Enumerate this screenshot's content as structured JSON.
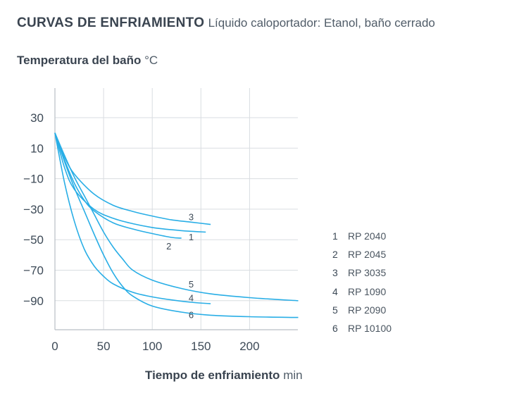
{
  "title": "CURVAS DE ENFRIAMIENTO",
  "subtitle": "Líquido caloportador: Etanol, baño cerrado",
  "ylabel": {
    "text": "Temperatura del baño",
    "unit": "°C"
  },
  "xlabel": {
    "text": "Tiempo de enfriamiento",
    "unit": "min"
  },
  "legend": [
    {
      "num": "1",
      "label": "RP 2040"
    },
    {
      "num": "2",
      "label": "RP 2045"
    },
    {
      "num": "3",
      "label": "RP 3035"
    },
    {
      "num": "4",
      "label": "RP 1090"
    },
    {
      "num": "5",
      "label": "RP 2090"
    },
    {
      "num": "6",
      "label": "RP 10100"
    }
  ],
  "chart_data": {
    "type": "line",
    "title": "CURVAS DE ENFRIAMIENTO",
    "subtitle": "Líquido caloportador: Etanol, baño cerrado",
    "xlabel": "Tiempo de enfriamiento min",
    "ylabel": "Temperatura del baño °C",
    "xlim": [
      0,
      250
    ],
    "ylim": [
      -110,
      50
    ],
    "xticks": [
      0,
      50,
      100,
      150,
      200
    ],
    "yticks": [
      30,
      10,
      -10,
      -30,
      -50,
      -70,
      -90
    ],
    "grid": true,
    "line_color": "#29aee6",
    "series": [
      {
        "name": "1",
        "x": [
          0,
          10,
          20,
          40,
          60,
          80,
          100,
          120,
          140,
          155
        ],
        "y": [
          20,
          -3,
          -17,
          -30,
          -36,
          -39.5,
          -42,
          -43.5,
          -44.5,
          -45
        ]
      },
      {
        "name": "2",
        "x": [
          0,
          10,
          20,
          30,
          40,
          60,
          80,
          100,
          120,
          130
        ],
        "y": [
          20,
          2,
          -13,
          -24,
          -31,
          -39,
          -43,
          -46,
          -48.5,
          -49
        ]
      },
      {
        "name": "3",
        "x": [
          0,
          10,
          20,
          40,
          60,
          80,
          100,
          120,
          140,
          160
        ],
        "y": [
          20,
          4,
          -7,
          -20,
          -27.5,
          -31.5,
          -34.5,
          -37,
          -38.5,
          -40
        ]
      },
      {
        "name": "4",
        "x": [
          0,
          10,
          20,
          30,
          40,
          50,
          60,
          80,
          100,
          120,
          140,
          160
        ],
        "y": [
          20,
          -13,
          -38,
          -56,
          -67,
          -74,
          -79,
          -84.5,
          -87.5,
          -89.5,
          -91,
          -92
        ]
      },
      {
        "name": "5",
        "x": [
          0,
          10,
          20,
          30,
          40,
          50,
          60,
          70,
          80,
          100,
          130,
          160,
          200,
          250
        ],
        "y": [
          20,
          5,
          -9,
          -21,
          -33,
          -45,
          -55,
          -63,
          -70,
          -76.5,
          -82,
          -85.5,
          -88,
          -90
        ]
      },
      {
        "name": "6",
        "x": [
          0,
          10,
          20,
          30,
          40,
          50,
          60,
          70,
          80,
          100,
          130,
          160,
          200,
          250
        ],
        "y": [
          20,
          1,
          -16,
          -31,
          -46,
          -60,
          -72,
          -81,
          -87,
          -93.5,
          -97.5,
          -99.5,
          -100.5,
          -101
        ]
      }
    ],
    "curve_labels": [
      {
        "text": "3",
        "x": 140,
        "y": -35
      },
      {
        "text": "1",
        "x": 140,
        "y": -48
      },
      {
        "text": "2",
        "x": 117,
        "y": -54
      },
      {
        "text": "5",
        "x": 140,
        "y": -79
      },
      {
        "text": "4",
        "x": 140,
        "y": -88
      },
      {
        "text": "6",
        "x": 140,
        "y": -99
      }
    ]
  }
}
